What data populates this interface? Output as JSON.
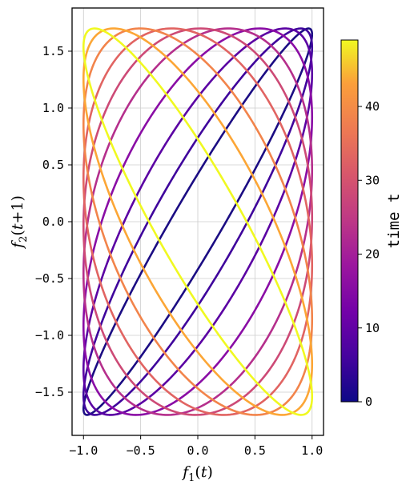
{
  "chart_data": {
    "type": "line",
    "title": "",
    "xlabel": "f_1(t)",
    "ylabel": "f_2(t+1)",
    "xlim": [
      -1.1,
      1.1
    ],
    "ylim": [
      -1.88,
      1.88
    ],
    "x_ticks": [
      "−1.0",
      "−0.5",
      "0.0",
      "0.5",
      "1.0"
    ],
    "y_ticks": [
      "−1.5",
      "−1.0",
      "−0.5",
      "0.0",
      "0.5",
      "1.0",
      "1.5"
    ],
    "grid": true,
    "colorbar": {
      "label": "time t",
      "range": [
        0,
        49
      ],
      "ticks": [
        "0",
        "10",
        "20",
        "30",
        "40"
      ],
      "colormap": "plasma"
    },
    "series": [
      {
        "time": 0,
        "center_x": 0.0,
        "center_y": 0.0,
        "x_amplitude": 1.0,
        "y_amplitude": 1.7,
        "phase_shift": 0.5,
        "color": "#1b0c83"
      },
      {
        "time": 5,
        "center_x": 0.0,
        "center_y": 0.0,
        "x_amplitude": 1.0,
        "y_amplitude": 1.7,
        "phase_shift": 0.9,
        "color": "#3f049c"
      },
      {
        "time": 10,
        "center_x": 0.0,
        "center_y": 0.0,
        "x_amplitude": 1.0,
        "y_amplitude": 1.7,
        "phase_shift": 1.4,
        "color": "#5b02a3"
      },
      {
        "time": 15,
        "center_x": 0.0,
        "center_y": 0.0,
        "x_amplitude": 1.0,
        "y_amplitude": 1.7,
        "phase_shift": 2.0,
        "color": "#8a0da5"
      },
      {
        "time": 20,
        "center_x": 0.0,
        "center_y": 0.0,
        "x_amplitude": 1.0,
        "y_amplitude": 1.7,
        "phase_shift": 2.6,
        "color": "#b52f8c"
      },
      {
        "time": 25,
        "center_x": 0.0,
        "center_y": 0.0,
        "x_amplitude": 1.0,
        "y_amplitude": 1.7,
        "phase_shift": 3.1,
        "color": "#cd4a76"
      },
      {
        "time": 30,
        "center_x": 0.0,
        "center_y": 0.0,
        "x_amplitude": 1.0,
        "y_amplitude": 1.7,
        "phase_shift": 3.6,
        "color": "#e16462"
      },
      {
        "time": 35,
        "center_x": 0.0,
        "center_y": 0.0,
        "x_amplitude": 1.0,
        "y_amplitude": 1.7,
        "phase_shift": 4.2,
        "color": "#f2844b"
      },
      {
        "time": 40,
        "center_x": 0.0,
        "center_y": 0.0,
        "x_amplitude": 1.0,
        "y_amplitude": 1.7,
        "phase_shift": 4.8,
        "color": "#fca636"
      },
      {
        "time": 45,
        "center_x": 0.0,
        "center_y": 0.0,
        "x_amplitude": 1.0,
        "y_amplitude": 1.7,
        "phase_shift": 5.4,
        "color": "#f0f921"
      }
    ]
  }
}
